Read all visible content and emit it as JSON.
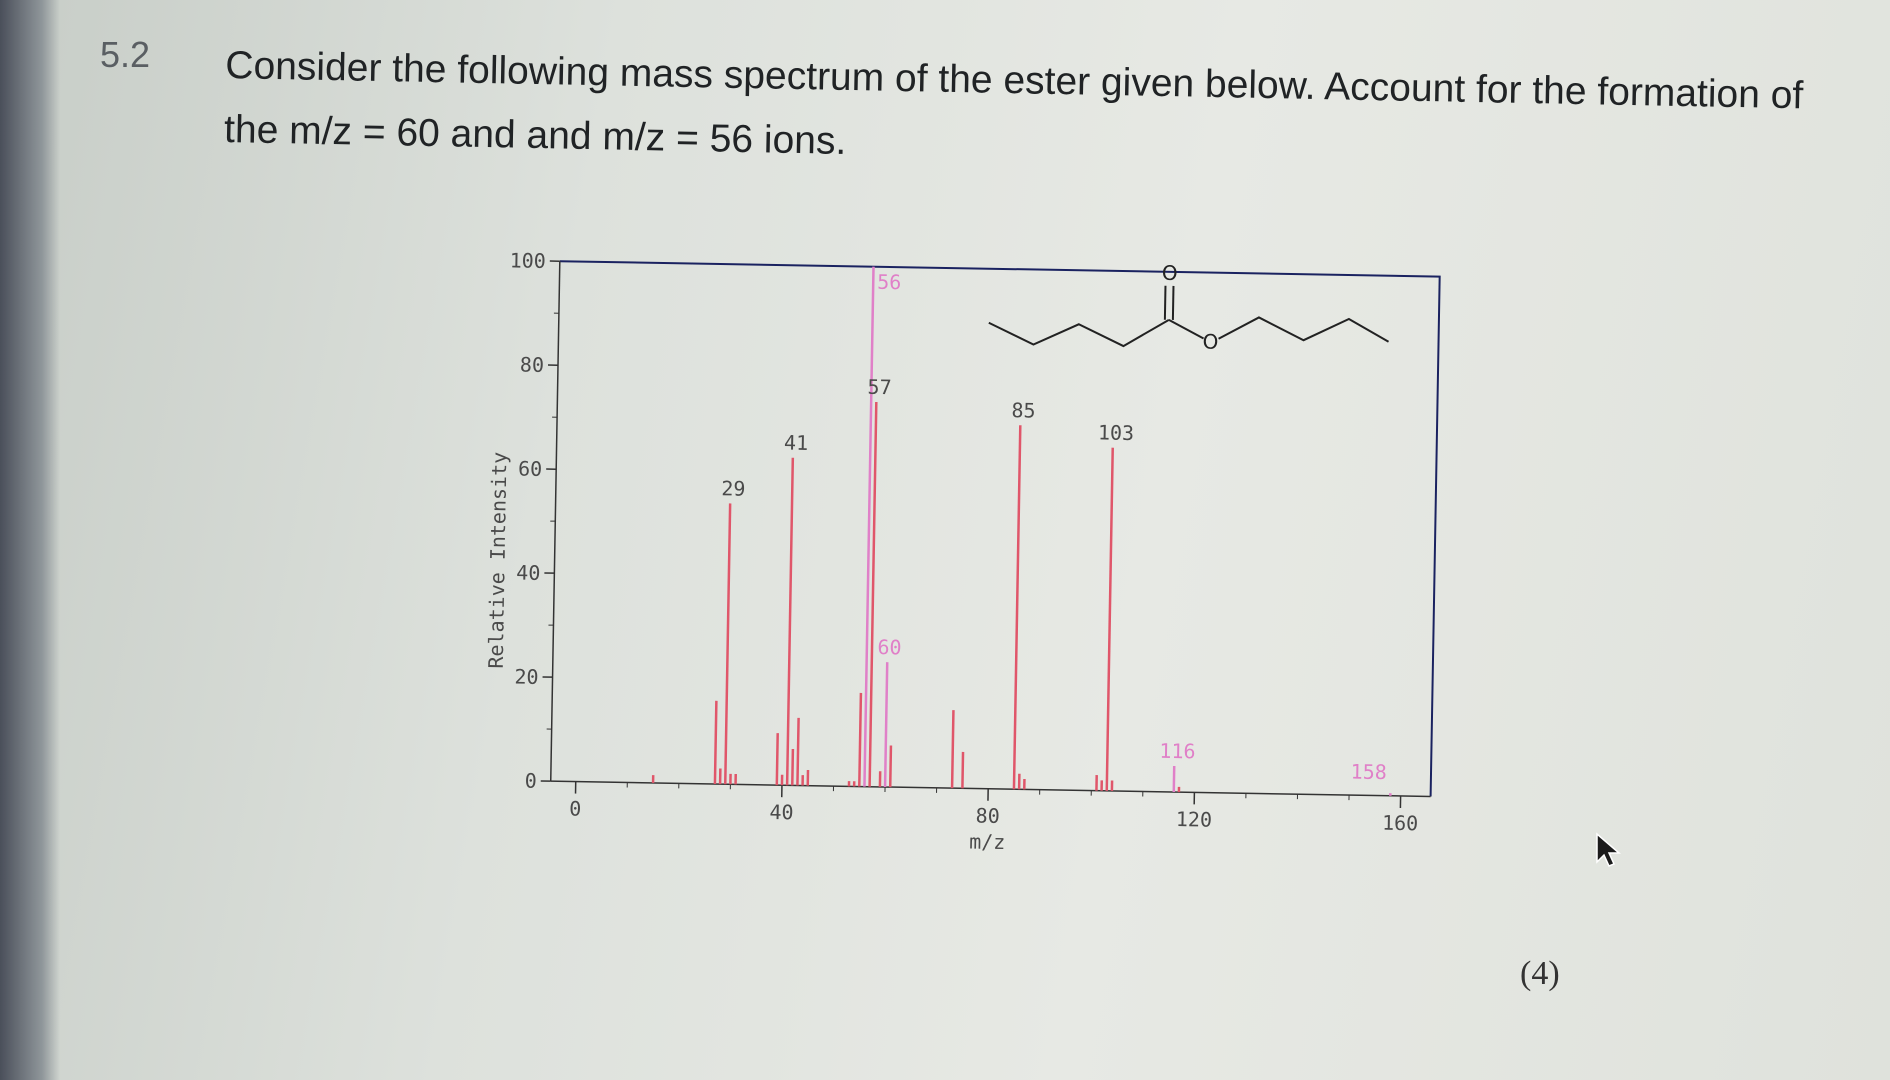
{
  "question": {
    "number": "5.2",
    "text": "Consider the following mass spectrum of the ester given below. Account for the formation of the m/z = 60 and and m/z = 56 ions."
  },
  "marks": "(4)",
  "colors": {
    "peak": "#e0566a",
    "peak_highlight": "#e080c8",
    "axis": "#333333",
    "frame": "#1a2260",
    "label": "#4a4a4a"
  },
  "chart_data": {
    "type": "bar",
    "xlabel": "m/z",
    "ylabel": "Relative Intensity",
    "xlim": [
      0,
      160
    ],
    "ylim": [
      0,
      100
    ],
    "x_ticks": [
      0,
      40,
      80,
      120,
      160
    ],
    "y_ticks": [
      0,
      20,
      40,
      60,
      80,
      100
    ],
    "peaks": [
      {
        "mz": 15,
        "intensity": 1.5
      },
      {
        "mz": 27,
        "intensity": 16
      },
      {
        "mz": 28,
        "intensity": 3
      },
      {
        "mz": 29,
        "intensity": 54,
        "label": "29"
      },
      {
        "mz": 30,
        "intensity": 2
      },
      {
        "mz": 31,
        "intensity": 2
      },
      {
        "mz": 39,
        "intensity": 10
      },
      {
        "mz": 40,
        "intensity": 2
      },
      {
        "mz": 41,
        "intensity": 63,
        "label": "41"
      },
      {
        "mz": 42,
        "intensity": 7
      },
      {
        "mz": 43,
        "intensity": 13
      },
      {
        "mz": 44,
        "intensity": 2
      },
      {
        "mz": 45,
        "intensity": 3
      },
      {
        "mz": 53,
        "intensity": 1
      },
      {
        "mz": 54,
        "intensity": 1
      },
      {
        "mz": 55,
        "intensity": 18
      },
      {
        "mz": 56,
        "intensity": 100,
        "label": "56",
        "highlight": true
      },
      {
        "mz": 57,
        "intensity": 74,
        "label": "57"
      },
      {
        "mz": 59,
        "intensity": 3
      },
      {
        "mz": 60,
        "intensity": 24,
        "label": "60",
        "highlight": true
      },
      {
        "mz": 61,
        "intensity": 8
      },
      {
        "mz": 73,
        "intensity": 15
      },
      {
        "mz": 75,
        "intensity": 7
      },
      {
        "mz": 85,
        "intensity": 70,
        "label": "85"
      },
      {
        "mz": 86,
        "intensity": 3
      },
      {
        "mz": 87,
        "intensity": 2
      },
      {
        "mz": 101,
        "intensity": 3
      },
      {
        "mz": 102,
        "intensity": 2
      },
      {
        "mz": 103,
        "intensity": 66,
        "label": "103"
      },
      {
        "mz": 104,
        "intensity": 2
      },
      {
        "mz": 116,
        "intensity": 5,
        "label": "116",
        "highlight": true
      },
      {
        "mz": 117,
        "intensity": 1
      },
      {
        "mz": 158,
        "intensity": 0.5,
        "label": "158",
        "highlight": true
      }
    ],
    "structure": {
      "carbonyl_oxygen_label": "O",
      "ester_oxygen_label": "O"
    }
  }
}
